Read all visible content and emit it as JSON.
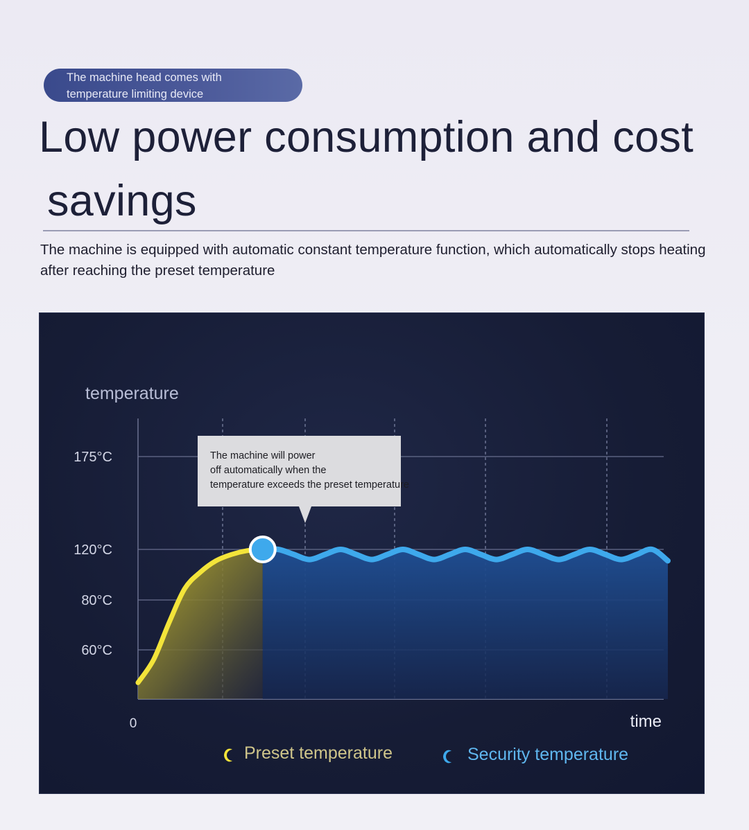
{
  "badge": {
    "line1": "The machine head comes with",
    "line2": "temperature limiting device"
  },
  "headline": {
    "line1": "Low power consumption and cost",
    "line2": "savings"
  },
  "description": "The machine is equipped with automatic constant temperature function, which automatically stops heating after reaching the preset temperature",
  "chart_data": {
    "type": "area",
    "ylabel": "temperature",
    "xlabel": "time",
    "x_origin_label": "0",
    "y_ticks": [
      "175°C",
      "120°C",
      "80°C",
      "60°C"
    ],
    "y_tick_values": [
      175,
      120,
      80,
      60
    ],
    "grid": true,
    "legend_position": "bottom",
    "annotation": "The machine will power off automatically when the temperature exceeds the preset temperature",
    "colors": {
      "preset": "#f3e43a",
      "security": "#3ea9ec",
      "background": "#171d37"
    },
    "series": [
      {
        "name": "Preset temperature",
        "x": [
          0,
          1,
          2,
          3,
          4,
          5,
          6,
          7,
          8
        ],
        "values": [
          20,
          48,
          71,
          89,
          102,
          111,
          116,
          119,
          120
        ]
      },
      {
        "name": "Security temperature",
        "x": [
          8,
          9,
          10,
          11,
          12,
          13,
          14,
          15,
          16,
          17,
          18,
          19,
          20,
          21,
          22,
          23,
          24,
          25,
          26,
          27,
          28,
          29,
          30,
          31,
          32,
          33,
          34
        ],
        "values": [
          120,
          120,
          116,
          112,
          116,
          120,
          116,
          112,
          116,
          120,
          116,
          112,
          116,
          120,
          116,
          112,
          116,
          120,
          116,
          112,
          116,
          120,
          116,
          112,
          116,
          120,
          111
        ]
      }
    ]
  }
}
